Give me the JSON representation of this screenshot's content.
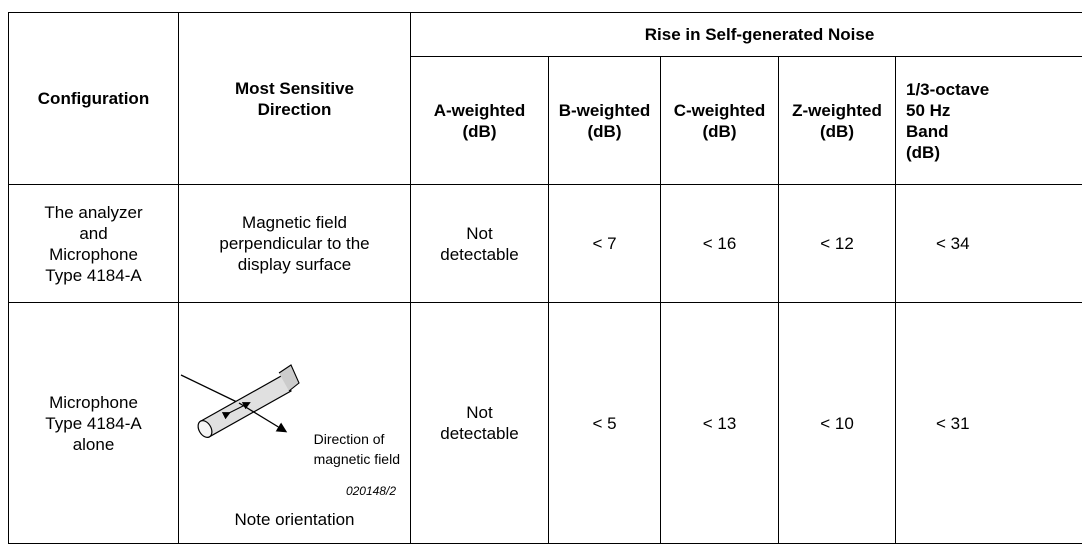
{
  "table": {
    "header": {
      "config": "Configuration",
      "direction": "Most Sensitive\nDirection",
      "group": "Rise in Self-generated Noise",
      "columns": [
        "A-weighted\n(dB)",
        "B-weighted\n(dB)",
        "C-weighted\n(dB)",
        "Z-weighted\n(dB)",
        "1/3-octave\n50 Hz\nBand\n(dB)"
      ]
    },
    "rows": [
      [
        "The analyzer\nand\nMicrophone\nType 4184-A",
        "Magnetic field\nperpendicular to the\ndisplay surface",
        "Not\ndetectable",
        "< 7",
        "< 16",
        "< 12",
        "< 34"
      ],
      [
        "Microphone\nType 4184-A\nalone",
        null,
        "Not\ndetectable",
        "< 5",
        "< 13",
        "< 10",
        "< 31"
      ]
    ],
    "figure": {
      "arrow_label": "Direction of\nmagnetic field",
      "code": "020148/2",
      "caption": "Note orientation"
    }
  }
}
